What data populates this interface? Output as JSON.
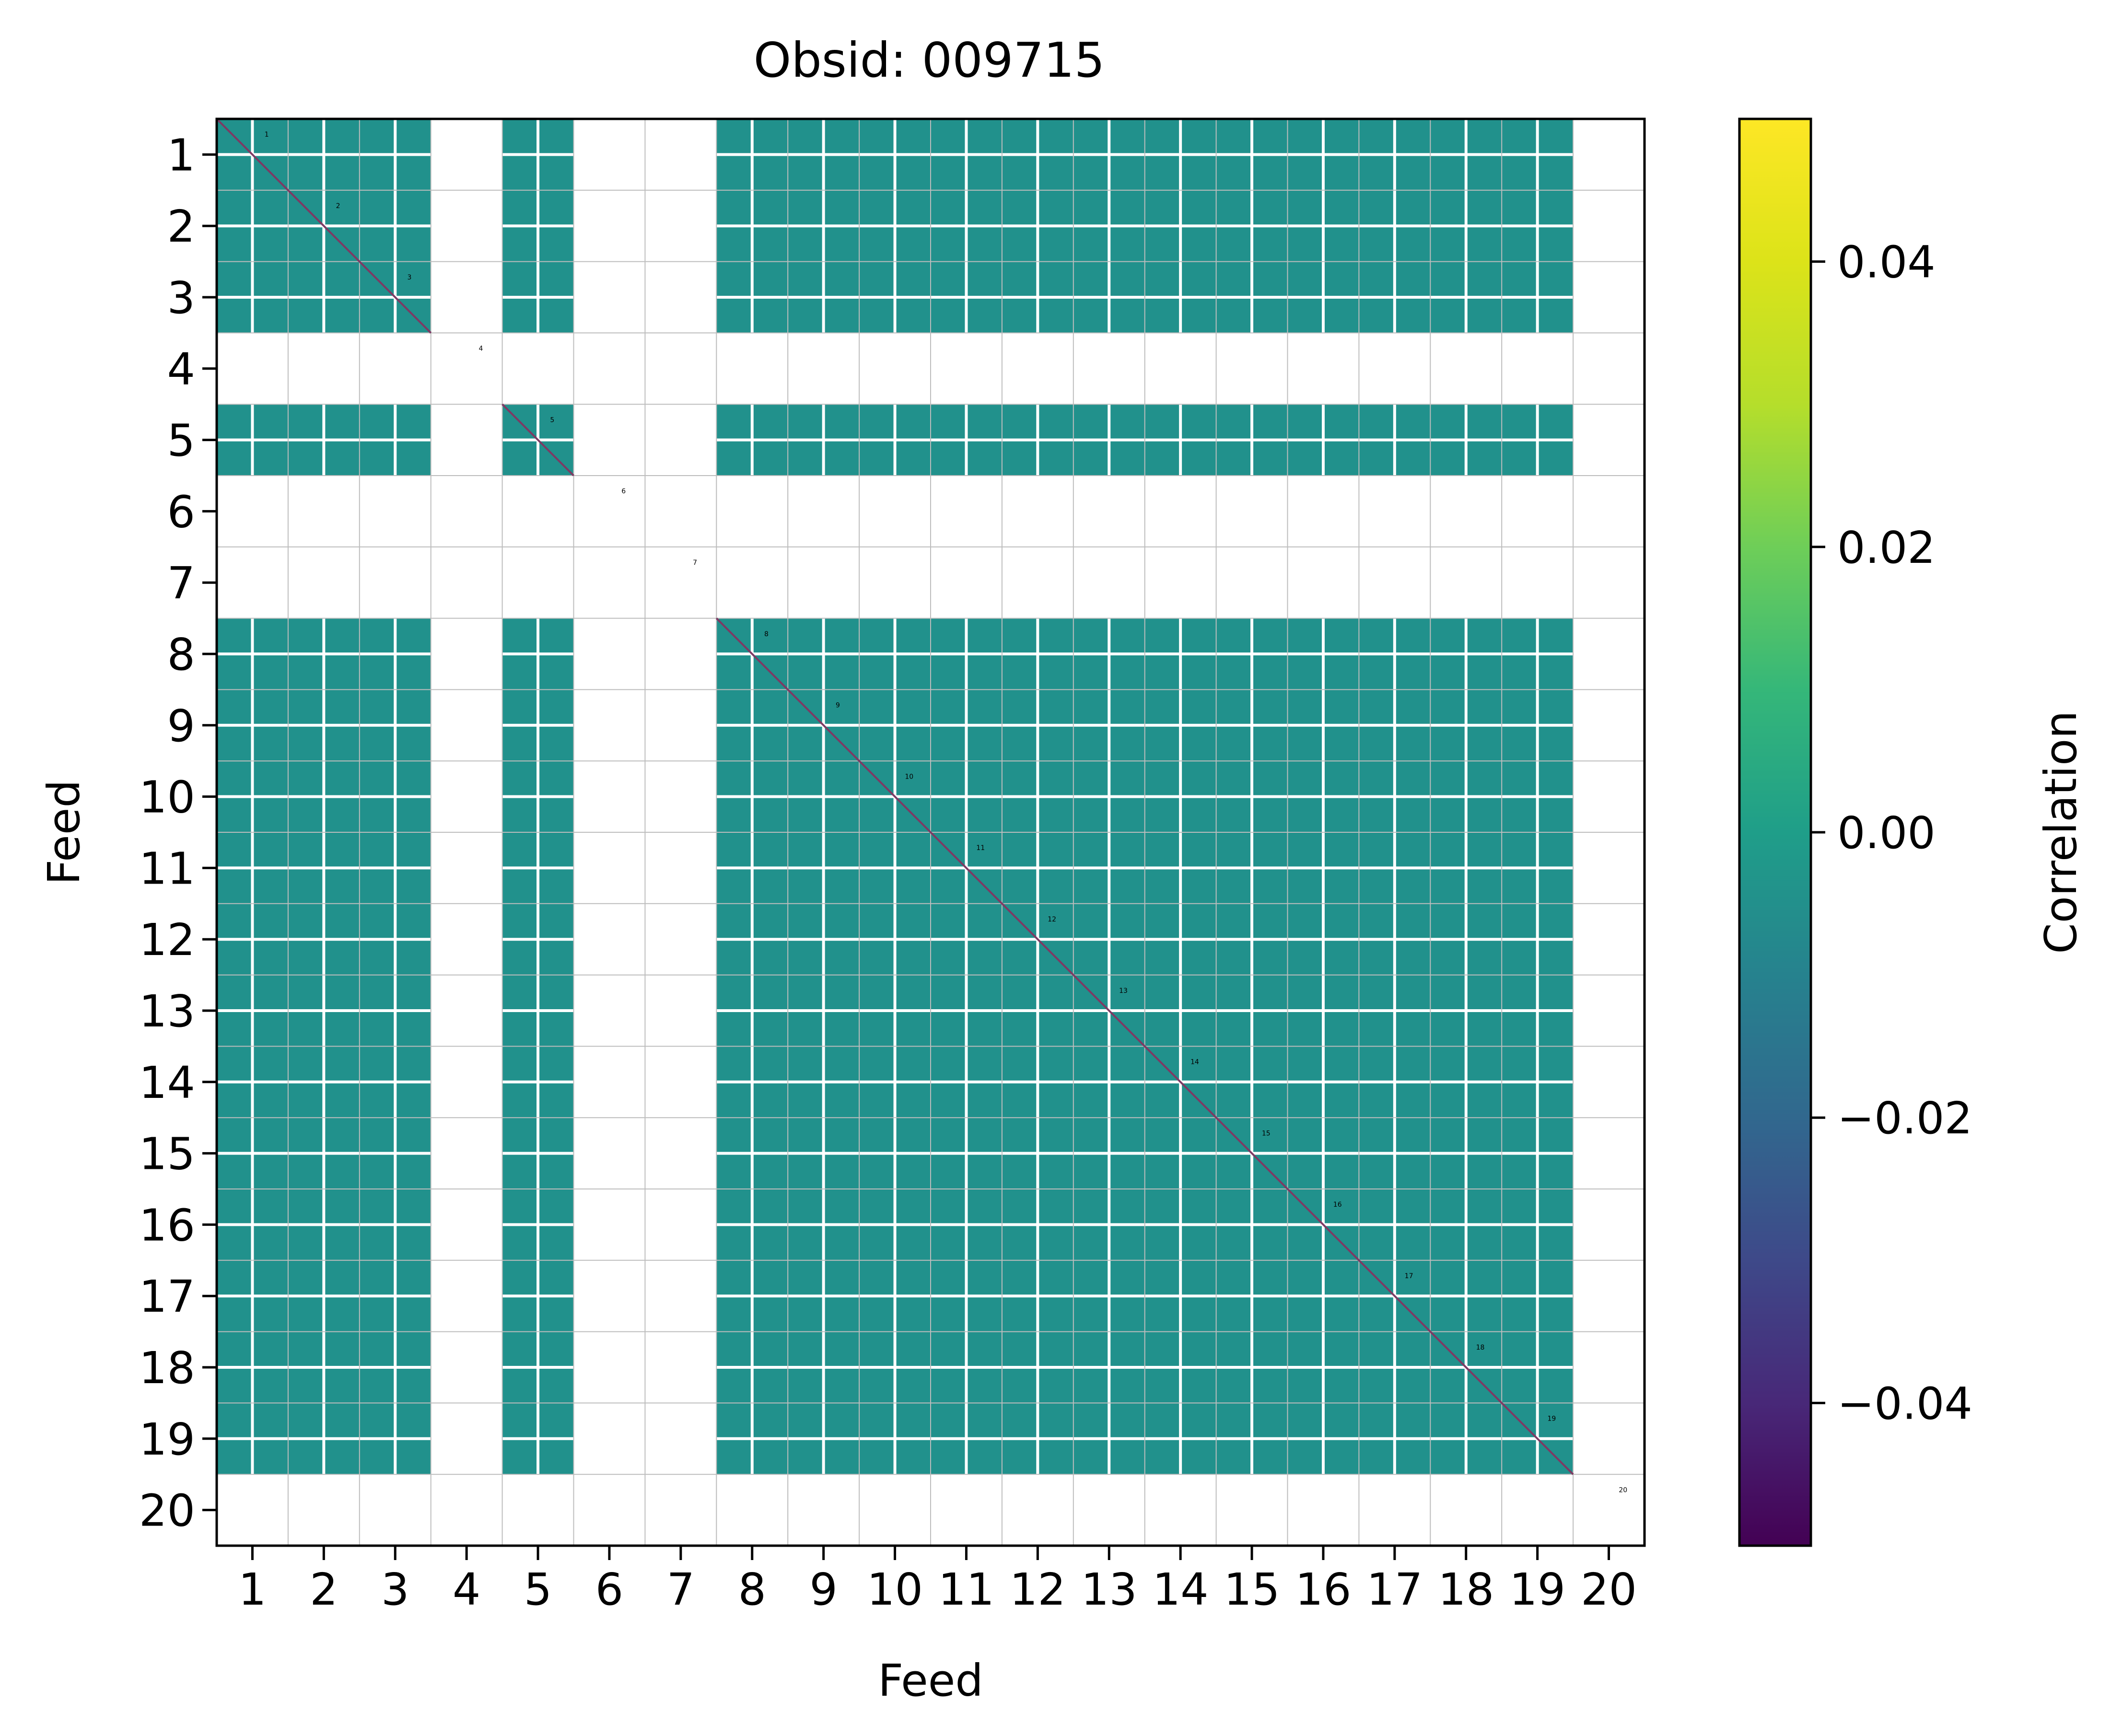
{
  "chart_data": {
    "type": "heatmap",
    "title": "Obsid: 009715",
    "xlabel": "Feed",
    "ylabel": "Feed",
    "x_ticks": [
      "1",
      "2",
      "3",
      "4",
      "5",
      "6",
      "7",
      "8",
      "9",
      "10",
      "11",
      "12",
      "13",
      "14",
      "15",
      "16",
      "17",
      "18",
      "19",
      "20"
    ],
    "y_ticks": [
      "1",
      "2",
      "3",
      "4",
      "5",
      "6",
      "7",
      "8",
      "9",
      "10",
      "11",
      "12",
      "13",
      "14",
      "15",
      "16",
      "17",
      "18",
      "19",
      "20"
    ],
    "diagonal_labels": [
      "1",
      "2",
      "3",
      "4",
      "5",
      "6",
      "7",
      "8",
      "9",
      "10",
      "11",
      "12",
      "13",
      "14",
      "15",
      "16",
      "17",
      "18",
      "19",
      "20"
    ],
    "active_feeds": [
      1,
      2,
      3,
      5,
      8,
      9,
      10,
      11,
      12,
      13,
      14,
      15,
      16,
      17,
      18,
      19
    ],
    "masked_feeds": [
      4,
      6,
      7,
      20
    ],
    "cell_value": 0.0,
    "cell_color": "#21918c",
    "diagonal_color": "#7d3a64",
    "colorbar": {
      "label": "Correlation",
      "vmin": -0.05,
      "vmax": 0.05,
      "ticks": [
        "0.04",
        "0.02",
        "0.00",
        "−0.02",
        "−0.04"
      ],
      "tick_values": [
        0.04,
        0.02,
        0.0,
        -0.02,
        -0.04
      ],
      "colormap": "viridis"
    },
    "grid": true
  }
}
